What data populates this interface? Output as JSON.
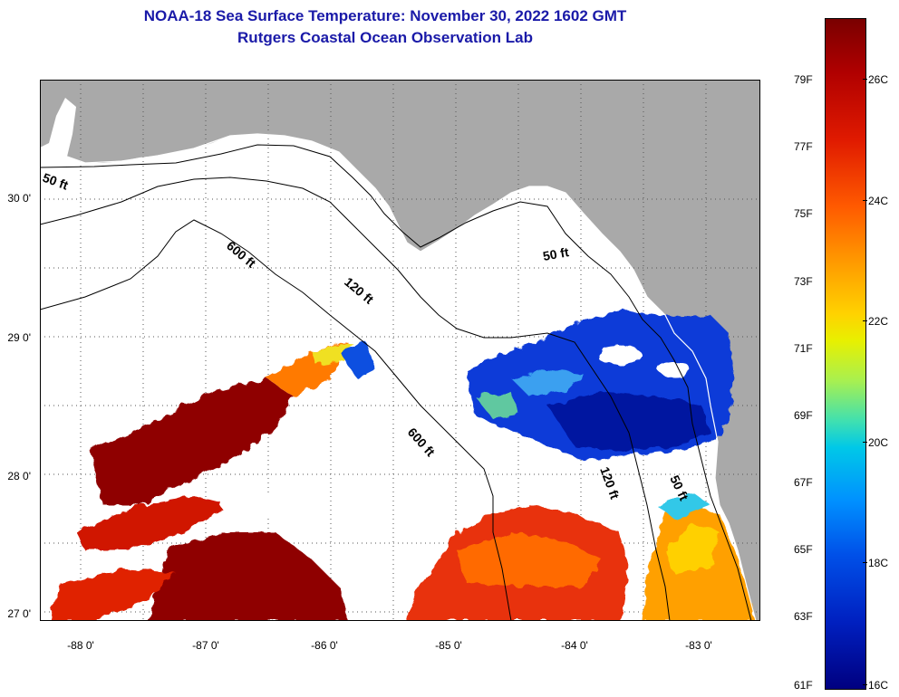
{
  "title": {
    "line1": "NOAA-18 Sea Surface Temperature:  November 30, 2022 1602 GMT",
    "line2": "Rutgers Coastal Ocean Observation Lab"
  },
  "axes": {
    "lat_labels": [
      "30 0'",
      "29 0'",
      "28 0'",
      "27 0'"
    ],
    "lon_labels": [
      "-88 0'",
      "-87 0'",
      "-86 0'",
      "-85 0'",
      "-84 0'",
      "-83 0'"
    ]
  },
  "contours": {
    "labels": [
      "50 ft",
      "120 ft",
      "600 ft",
      "600 ft",
      "50 ft",
      "120 ft",
      "50 ft"
    ]
  },
  "colorbar": {
    "fahrenheit": [
      "79F",
      "77F",
      "75F",
      "73F",
      "71F",
      "69F",
      "67F",
      "65F",
      "63F",
      "61F"
    ],
    "celsius": [
      "26C",
      "24C",
      "22C",
      "20C",
      "18C",
      "16C"
    ],
    "colors": [
      "#7a0000",
      "#e01a00",
      "#ff9800",
      "#e8f000",
      "#00c8e8",
      "#0050e8",
      "#000080"
    ]
  },
  "colors": {
    "land": "#a9a9a9",
    "ocean_no_data": "#ffffff",
    "title": "#1a1aa8"
  }
}
